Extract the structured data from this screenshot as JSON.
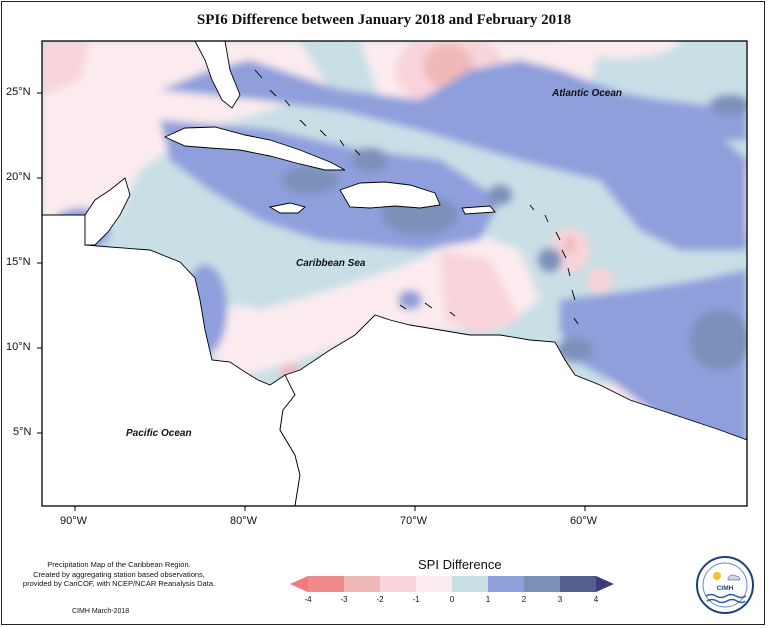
{
  "title": "SPI6 Difference between January 2018 and February 2018",
  "axes": {
    "lat_labels": [
      "25°N",
      "20°N",
      "15°N",
      "10°N",
      "5°N"
    ],
    "lon_labels": [
      "90°W",
      "80°W",
      "70°W",
      "60°W"
    ]
  },
  "map_labels": {
    "atlantic": "Atlantic Ocean",
    "caribbean": "Caribbean Sea",
    "pacific": "Pacific Ocean"
  },
  "legend": {
    "title": "SPI Difference",
    "ticks": [
      "-4",
      "-3",
      "-2",
      "-1",
      "0",
      "1",
      "2",
      "3",
      "4"
    ],
    "colors": [
      "#f08b8b",
      "#f0b8b9",
      "#f8d4da",
      "#fbebee",
      "#c9dfe6",
      "#8e9fdc",
      "#7b90b9",
      "#54608f"
    ],
    "low_arrow_color": "#f37a7a",
    "high_arrow_color": "#3b3c7a"
  },
  "footnote": {
    "lines": [
      "Precipitation Map of the Caribbean Region.",
      "Created by aggregating station based observations,",
      "provided by CariCOF, with NCEP/NCAR Reanalysis Data."
    ],
    "credit": "CIMH March-2018"
  },
  "logo": {
    "text": "CIMH"
  },
  "colors": {
    "land": "#ffffff",
    "coast": "#000000",
    "neutral": "#c9dfe6",
    "pale_pink": "#fbebee",
    "pink": "#f8d4da",
    "salmon": "#f0b8b9",
    "blue": "#8e9fdc",
    "slate": "#7b90b9"
  }
}
